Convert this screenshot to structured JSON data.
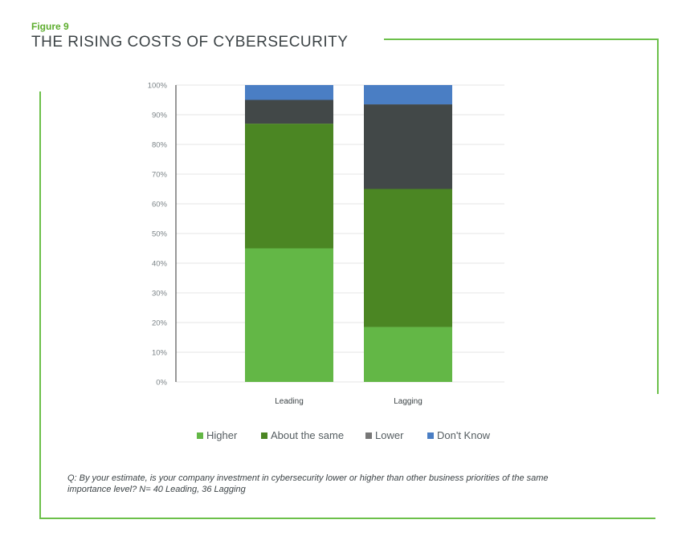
{
  "figure_label": "Figure 9",
  "figure_title": "THE RISING COSTS OF CYBERSECURITY",
  "colors": {
    "higher": "#63b746",
    "about_the_same": "#4b8623",
    "lower": "#424848",
    "dont_know": "#4a7ec4",
    "accent_line": "#6cc04a"
  },
  "chart_data": {
    "type": "bar",
    "stacked": true,
    "title": "THE RISING COSTS OF CYBERSECURITY",
    "xlabel": "",
    "ylabel": "",
    "categories": [
      "Leading",
      "Lagging"
    ],
    "series": [
      {
        "name": "Higher",
        "values": [
          45,
          18.5
        ]
      },
      {
        "name": "About the same",
        "values": [
          42,
          46.5
        ]
      },
      {
        "name": "Lower",
        "values": [
          8,
          28.5
        ]
      },
      {
        "name": "Don't Know",
        "values": [
          5,
          6.5
        ]
      }
    ],
    "ylim": [
      0,
      100
    ],
    "yticks": [
      "0%",
      "10%",
      "20%",
      "30%",
      "40%",
      "50%",
      "60%",
      "70%",
      "80%",
      "90%",
      "100%"
    ],
    "grid": true,
    "legend_position": "bottom"
  },
  "note": "Q: By your estimate, is your company investment in cybersecurity lower or higher than other business priorities of the same importance level? N= 40 Leading, 36 Lagging"
}
